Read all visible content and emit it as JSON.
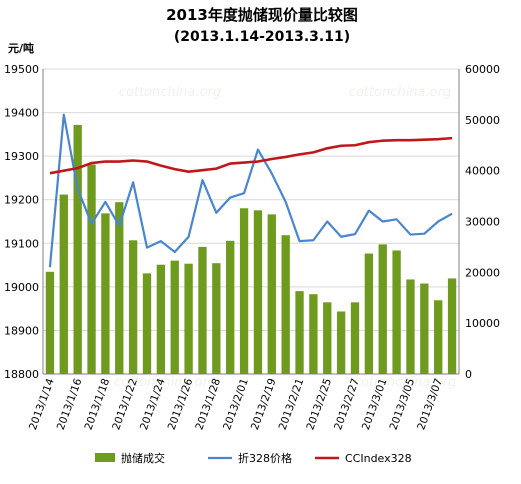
{
  "chart_data": {
    "type": "bar",
    "title": "2013年度抛储现价量比较图",
    "subtitle": "(2013.1.14-2013.3.11)",
    "left_axis": {
      "unit_label": "元/吨",
      "range": [
        18800,
        19500
      ],
      "ticks": [
        "18800",
        "18900",
        "19000",
        "19100",
        "19200",
        "19300",
        "19400",
        "19500"
      ]
    },
    "right_axis": {
      "range": [
        0,
        60000
      ],
      "ticks": [
        "0",
        "10000",
        "20000",
        "30000",
        "40000",
        "50000",
        "60000"
      ]
    },
    "x_tick_labels": [
      "2013/1/14",
      "2013/1/16",
      "2013/1/18",
      "2013/1/22",
      "2013/1/24",
      "2013/1/26",
      "2013/1/28",
      "2013/2/01",
      "2013/2/19",
      "2013/2/21",
      "2013/2/25",
      "2013/2/27",
      "2013/3/01",
      "2013/3/05",
      "2013/3/07"
    ],
    "grid": true,
    "legend_position": "bottom",
    "series": [
      {
        "name": "抛储成交",
        "type": "bar",
        "axis": "right",
        "color": "#6e9a1e",
        "values": [
          20100,
          35300,
          49000,
          41200,
          31600,
          33800,
          26300,
          19800,
          21500,
          22300,
          21700,
          25000,
          21800,
          26200,
          32600,
          32200,
          31400,
          27300,
          16300,
          15700,
          14100,
          12300,
          14100,
          23700,
          25500,
          24300,
          18600,
          17800,
          14500,
          18800
        ]
      },
      {
        "name": "折328价格",
        "type": "line",
        "axis": "left",
        "color": "#4a86d0",
        "values": [
          19045,
          19395,
          19225,
          19145,
          19195,
          19140,
          19240,
          19090,
          19105,
          19080,
          19115,
          19245,
          19170,
          19205,
          19215,
          19315,
          19260,
          19195,
          19105,
          19107,
          19150,
          19115,
          19121,
          19175,
          19150,
          19155,
          19120,
          19122,
          19150,
          19168
        ]
      },
      {
        "name": "CCIndex328",
        "type": "line",
        "axis": "right",
        "color": "#c0181a",
        "values": [
          39500,
          40000,
          40500,
          41500,
          41800,
          41800,
          42000,
          41800,
          41000,
          40300,
          39800,
          40100,
          40400,
          41400,
          41600,
          41800,
          42300,
          42700,
          43200,
          43600,
          44400,
          44900,
          45000,
          45600,
          45900,
          46000,
          46000,
          46100,
          46200,
          46400
        ]
      }
    ],
    "watermark": "cottonchina.org"
  }
}
